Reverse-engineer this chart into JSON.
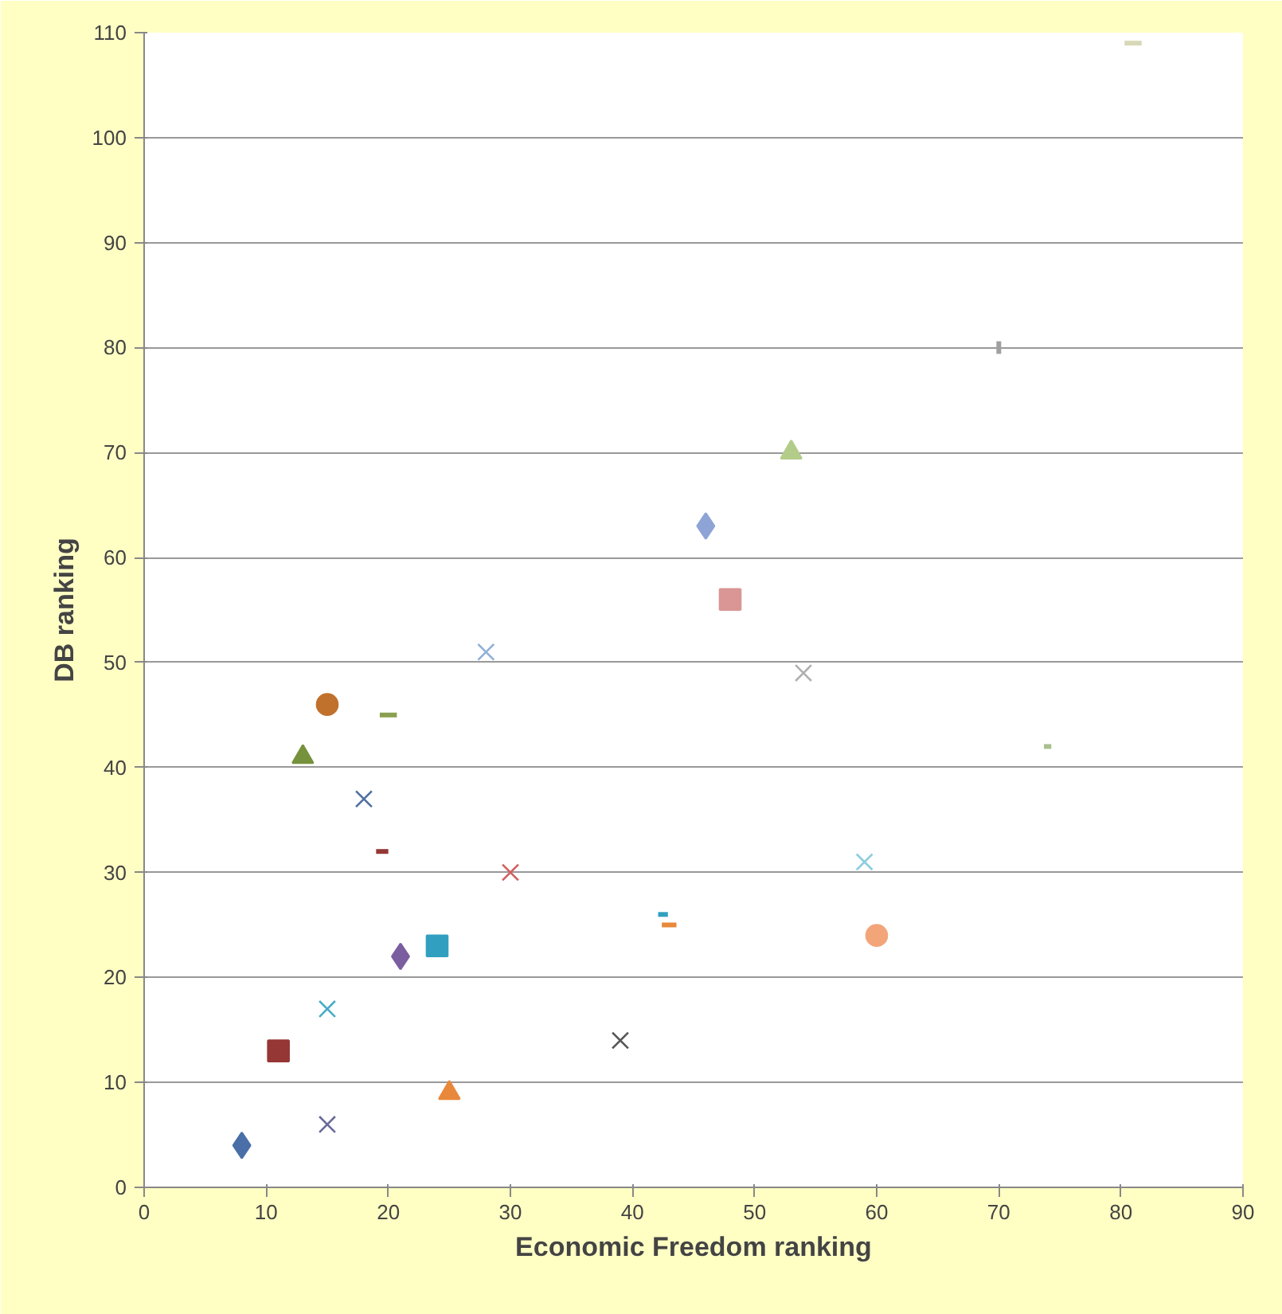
{
  "chart_data": {
    "type": "scatter",
    "xlabel": "Economic Freedom ranking",
    "ylabel": "DB ranking",
    "xlim": [
      0,
      90
    ],
    "xticks": [
      0,
      10,
      20,
      30,
      40,
      50,
      60,
      70,
      80,
      90
    ],
    "ylim": [
      0,
      110
    ],
    "yticks": [
      0,
      10,
      20,
      30,
      40,
      50,
      60,
      70,
      80,
      90,
      100,
      110
    ],
    "grid": "y",
    "series": [
      {
        "x": [
          8
        ],
        "values": [
          4
        ],
        "color": "#4a6fa8",
        "marker": "diamond"
      },
      {
        "x": [
          11
        ],
        "values": [
          13
        ],
        "color": "#953735",
        "marker": "square"
      },
      {
        "x": [
          25
        ],
        "values": [
          9
        ],
        "color": "#e8883a",
        "marker": "triangle"
      },
      {
        "x": [
          13
        ],
        "values": [
          41
        ],
        "color": "#76923c",
        "marker": "triangle"
      },
      {
        "x": [
          15
        ],
        "values": [
          6
        ],
        "color": "#6a6a9a",
        "marker": "cross"
      },
      {
        "x": [
          15
        ],
        "values": [
          17
        ],
        "color": "#4aacc6",
        "marker": "cross"
      },
      {
        "x": [
          15
        ],
        "values": [
          46
        ],
        "color": "#c0712c",
        "marker": "circle"
      },
      {
        "x": [
          18
        ],
        "values": [
          37
        ],
        "color": "#4f6f9f",
        "marker": "cross"
      },
      {
        "type": "line",
        "x": [
          19,
          20
        ],
        "values": [
          32,
          32
        ],
        "color": "#953735"
      },
      {
        "type": "line",
        "x": [
          19.3,
          20.7
        ],
        "values": [
          45,
          45
        ],
        "color": "#8aa050"
      },
      {
        "x": [
          21
        ],
        "values": [
          22
        ],
        "color": "#7b5ea0",
        "marker": "diamond"
      },
      {
        "x": [
          24
        ],
        "values": [
          23
        ],
        "color": "#31a0c0",
        "marker": "square"
      },
      {
        "x": [
          28
        ],
        "values": [
          51
        ],
        "color": "#8fb0d8",
        "marker": "cross"
      },
      {
        "x": [
          30
        ],
        "values": [
          30
        ],
        "color": "#d06060",
        "marker": "cross"
      },
      {
        "x": [
          39
        ],
        "values": [
          14
        ],
        "color": "#555555",
        "marker": "cross"
      },
      {
        "type": "line",
        "x": [
          42.1,
          42.9
        ],
        "values": [
          26,
          26
        ],
        "color": "#31a0c0"
      },
      {
        "type": "line",
        "x": [
          42.4,
          43.6
        ],
        "values": [
          25,
          25
        ],
        "color": "#e8883a"
      },
      {
        "x": [
          46
        ],
        "values": [
          63
        ],
        "color": "#8ea4d6",
        "marker": "diamond"
      },
      {
        "x": [
          48
        ],
        "values": [
          56
        ],
        "color": "#d99694",
        "marker": "square"
      },
      {
        "x": [
          53
        ],
        "values": [
          70
        ],
        "color": "#b3cc8a",
        "marker": "triangle"
      },
      {
        "x": [
          54
        ],
        "values": [
          49
        ],
        "color": "#b0b0b0",
        "marker": "cross"
      },
      {
        "x": [
          59
        ],
        "values": [
          31
        ],
        "color": "#8ccde0",
        "marker": "cross"
      },
      {
        "x": [
          60
        ],
        "values": [
          24
        ],
        "color": "#f3a57a",
        "marker": "circle"
      },
      {
        "type": "line",
        "x": [
          70,
          70
        ],
        "values": [
          79.4,
          80.6
        ],
        "color": "#a0a0a0"
      },
      {
        "type": "line",
        "x": [
          73.7,
          74.3
        ],
        "values": [
          42,
          42
        ],
        "color": "#a8c090"
      },
      {
        "type": "line",
        "x": [
          80.3,
          81.7
        ],
        "values": [
          109,
          109
        ],
        "color": "#d8d8b8"
      }
    ]
  }
}
